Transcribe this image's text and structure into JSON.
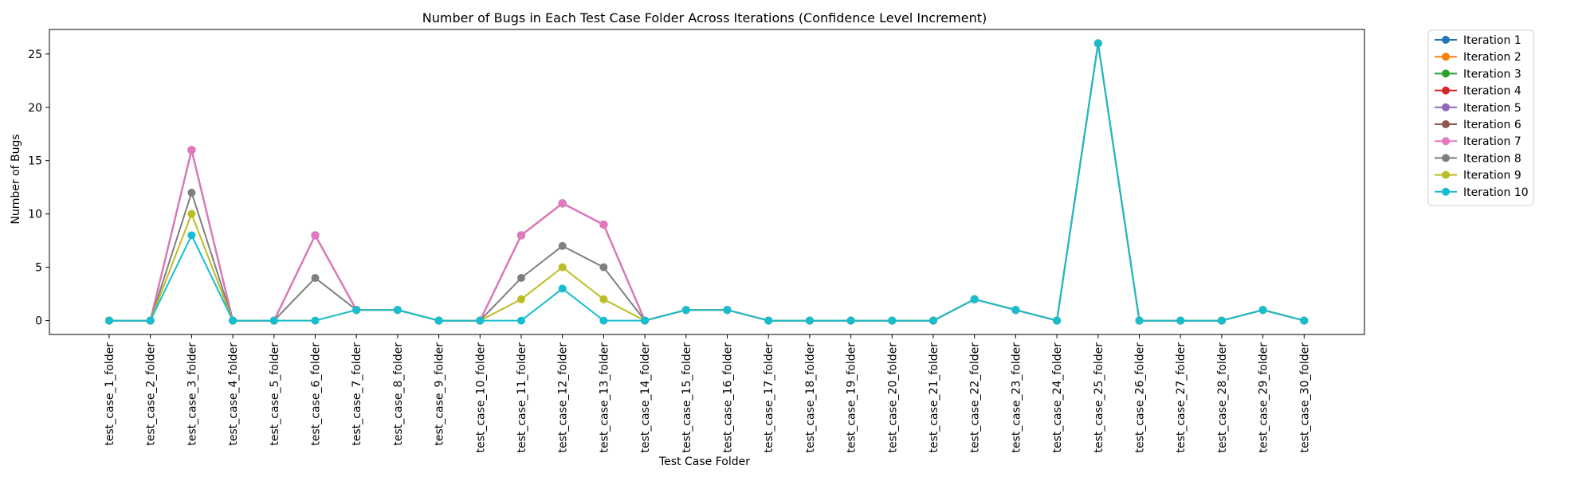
{
  "chart_data": {
    "type": "line",
    "title": "Number of Bugs in Each Test Case Folder Across Iterations (Confidence Level Increment)",
    "xlabel": "Test Case Folder",
    "ylabel": "Number of Bugs",
    "ylim": [
      -1.3,
      27.3
    ],
    "yticks": [
      0,
      5,
      10,
      15,
      20,
      25
    ],
    "grid": false,
    "legend_placement": "outside-top-right",
    "categories": [
      "test_case_1_folder",
      "test_case_2_folder",
      "test_case_3_folder",
      "test_case_4_folder",
      "test_case_5_folder",
      "test_case_6_folder",
      "test_case_7_folder",
      "test_case_8_folder",
      "test_case_9_folder",
      "test_case_10_folder",
      "test_case_11_folder",
      "test_case_12_folder",
      "test_case_13_folder",
      "test_case_14_folder",
      "test_case_15_folder",
      "test_case_16_folder",
      "test_case_17_folder",
      "test_case_18_folder",
      "test_case_19_folder",
      "test_case_20_folder",
      "test_case_21_folder",
      "test_case_22_folder",
      "test_case_23_folder",
      "test_case_24_folder",
      "test_case_25_folder",
      "test_case_26_folder",
      "test_case_27_folder",
      "test_case_28_folder",
      "test_case_29_folder",
      "test_case_30_folder"
    ],
    "series": [
      {
        "name": "Iteration 1",
        "color": "#1f77b4",
        "values": [
          0,
          0,
          16,
          0,
          0,
          8,
          1,
          1,
          0,
          0,
          8,
          11,
          9,
          0,
          1,
          1,
          0,
          0,
          0,
          0,
          0,
          2,
          1,
          0,
          26,
          0,
          0,
          0,
          1,
          0
        ]
      },
      {
        "name": "Iteration 2",
        "color": "#ff7f0e",
        "values": [
          0,
          0,
          16,
          0,
          0,
          8,
          1,
          1,
          0,
          0,
          8,
          11,
          9,
          0,
          1,
          1,
          0,
          0,
          0,
          0,
          0,
          2,
          1,
          0,
          26,
          0,
          0,
          0,
          1,
          0
        ]
      },
      {
        "name": "Iteration 3",
        "color": "#2ca02c",
        "values": [
          0,
          0,
          16,
          0,
          0,
          8,
          1,
          1,
          0,
          0,
          8,
          11,
          9,
          0,
          1,
          1,
          0,
          0,
          0,
          0,
          0,
          2,
          1,
          0,
          26,
          0,
          0,
          0,
          1,
          0
        ]
      },
      {
        "name": "Iteration 4",
        "color": "#d62728",
        "values": [
          0,
          0,
          16,
          0,
          0,
          8,
          1,
          1,
          0,
          0,
          8,
          11,
          9,
          0,
          1,
          1,
          0,
          0,
          0,
          0,
          0,
          2,
          1,
          0,
          26,
          0,
          0,
          0,
          1,
          0
        ]
      },
      {
        "name": "Iteration 5",
        "color": "#9467bd",
        "values": [
          0,
          0,
          16,
          0,
          0,
          8,
          1,
          1,
          0,
          0,
          8,
          11,
          9,
          0,
          1,
          1,
          0,
          0,
          0,
          0,
          0,
          2,
          1,
          0,
          26,
          0,
          0,
          0,
          1,
          0
        ]
      },
      {
        "name": "Iteration 6",
        "color": "#8c564b",
        "values": [
          0,
          0,
          16,
          0,
          0,
          8,
          1,
          1,
          0,
          0,
          8,
          11,
          9,
          0,
          1,
          1,
          0,
          0,
          0,
          0,
          0,
          2,
          1,
          0,
          26,
          0,
          0,
          0,
          1,
          0
        ]
      },
      {
        "name": "Iteration 7",
        "color": "#e377c2",
        "values": [
          0,
          0,
          16,
          0,
          0,
          8,
          1,
          1,
          0,
          0,
          8,
          11,
          9,
          0,
          1,
          1,
          0,
          0,
          0,
          0,
          0,
          2,
          1,
          0,
          26,
          0,
          0,
          0,
          1,
          0
        ]
      },
      {
        "name": "Iteration 8",
        "color": "#7f7f7f",
        "values": [
          0,
          0,
          12,
          0,
          0,
          4,
          1,
          1,
          0,
          0,
          4,
          7,
          5,
          0,
          1,
          1,
          0,
          0,
          0,
          0,
          0,
          2,
          1,
          0,
          26,
          0,
          0,
          0,
          1,
          0
        ]
      },
      {
        "name": "Iteration 9",
        "color": "#bcbd22",
        "values": [
          0,
          0,
          10,
          0,
          0,
          0,
          1,
          1,
          0,
          0,
          2,
          5,
          2,
          0,
          1,
          1,
          0,
          0,
          0,
          0,
          0,
          2,
          1,
          0,
          26,
          0,
          0,
          0,
          1,
          0
        ]
      },
      {
        "name": "Iteration 10",
        "color": "#17becf",
        "values": [
          0,
          0,
          8,
          0,
          0,
          0,
          1,
          1,
          0,
          0,
          0,
          3,
          0,
          0,
          1,
          1,
          0,
          0,
          0,
          0,
          0,
          2,
          1,
          0,
          26,
          0,
          0,
          0,
          1,
          0
        ]
      }
    ]
  }
}
